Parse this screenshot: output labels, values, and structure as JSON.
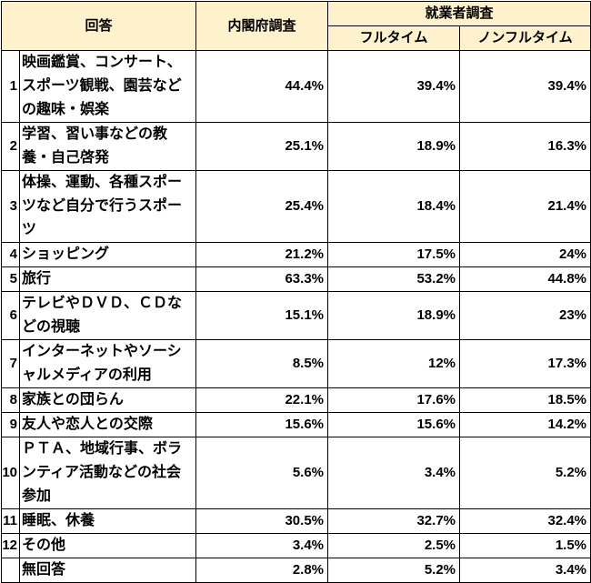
{
  "table": {
    "header": {
      "answer": "回答",
      "cabinet": "内閣府調査",
      "worker": "就業者調査",
      "fulltime": "フルタイム",
      "nonfulltime": "ノンフルタイム"
    },
    "rows": [
      {
        "no": "1",
        "answer": "映画鑑賞、コンサート、スポーツ観戦、園芸などの趣味・娯楽",
        "cabinet": "44.4%",
        "fulltime": "39.4%",
        "nonfulltime": "39.4%"
      },
      {
        "no": "2",
        "answer": "学習、習い事などの教養・自己啓発",
        "cabinet": "25.1%",
        "fulltime": "18.9%",
        "nonfulltime": "16.3%"
      },
      {
        "no": "3",
        "answer": "体操、運動、各種スポーツなど自分で行うスポーツ",
        "cabinet": "25.4%",
        "fulltime": "18.4%",
        "nonfulltime": "21.4%"
      },
      {
        "no": "4",
        "answer": "ショッピング",
        "cabinet": "21.2%",
        "fulltime": "17.5%",
        "nonfulltime": "24%"
      },
      {
        "no": "5",
        "answer": "旅行",
        "cabinet": "63.3%",
        "fulltime": "53.2%",
        "nonfulltime": "44.8%"
      },
      {
        "no": "6",
        "answer": "テレビやＤＶＤ、ＣＤなどの視聴",
        "cabinet": "15.1%",
        "fulltime": "18.9%",
        "nonfulltime": "23%"
      },
      {
        "no": "7",
        "answer": "インターネットやソーシャルメディアの利用",
        "cabinet": "8.5%",
        "fulltime": "12%",
        "nonfulltime": "17.3%"
      },
      {
        "no": "8",
        "answer": "家族との団らん",
        "cabinet": "22.1%",
        "fulltime": "17.6%",
        "nonfulltime": "18.5%"
      },
      {
        "no": "9",
        "answer": "友人や恋人との交際",
        "cabinet": "15.6%",
        "fulltime": "15.6%",
        "nonfulltime": "14.2%"
      },
      {
        "no": "10",
        "answer": "ＰＴＡ、地域行事、ボランティア活動などの社会参加",
        "cabinet": "5.6%",
        "fulltime": "3.4%",
        "nonfulltime": "5.2%"
      },
      {
        "no": "11",
        "answer": "睡眠、休養",
        "cabinet": "30.5%",
        "fulltime": "32.7%",
        "nonfulltime": "32.4%"
      },
      {
        "no": "12",
        "answer": "その他",
        "cabinet": "3.4%",
        "fulltime": "2.5%",
        "nonfulltime": "1.5%"
      },
      {
        "no": null,
        "answer": "無回答",
        "cabinet": "2.8%",
        "fulltime": "5.2%",
        "nonfulltime": "3.4%"
      }
    ]
  }
}
